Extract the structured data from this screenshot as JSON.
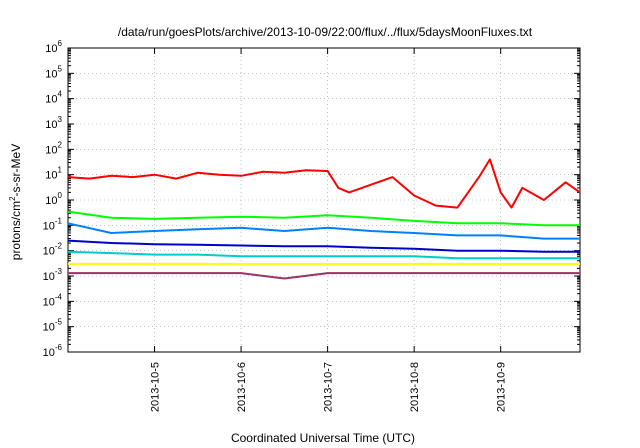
{
  "chart_data": {
    "type": "line",
    "title": "/data/run/goesPlots/archive/2013-10-09/22:00/flux/../flux/5daysMoonFluxes.txt",
    "xlabel": "Coordinated Universal Time (UTC)",
    "ylabel": {
      "prefix": "protons/cm",
      "sup": "2",
      "suffix": "-s-sr-MeV"
    },
    "x_range": [
      "2013-10-04 00:00",
      "2013-10-09 22:00"
    ],
    "x_ticks": [
      "2013-10-5",
      "2013-10-6",
      "2013-10-7",
      "2013-10-8",
      "2013-10-9"
    ],
    "y_scale": "log",
    "ylim": [
      1e-06,
      1000000.0
    ],
    "y_ticks": [
      {
        "base": "10",
        "exp": "-6"
      },
      {
        "base": "10",
        "exp": "-5"
      },
      {
        "base": "10",
        "exp": "-4"
      },
      {
        "base": "10",
        "exp": "-3"
      },
      {
        "base": "10",
        "exp": "-2"
      },
      {
        "base": "10",
        "exp": "-1"
      },
      {
        "base": "10",
        "exp": "0"
      },
      {
        "base": "10",
        "exp": "1"
      },
      {
        "base": "10",
        "exp": "2"
      },
      {
        "base": "10",
        "exp": "3"
      },
      {
        "base": "10",
        "exp": "4"
      },
      {
        "base": "10",
        "exp": "5"
      },
      {
        "base": "10",
        "exp": "6"
      }
    ],
    "grid": true,
    "series": [
      {
        "color": "#ff0000",
        "x": [
          "2013-10-04 00:00",
          "2013-10-04 06:00",
          "2013-10-04 12:00",
          "2013-10-04 18:00",
          "2013-10-05 00:00",
          "2013-10-05 06:00",
          "2013-10-05 12:00",
          "2013-10-05 18:00",
          "2013-10-06 00:00",
          "2013-10-06 06:00",
          "2013-10-06 12:00",
          "2013-10-06 18:00",
          "2013-10-07 00:00",
          "2013-10-07 03:00",
          "2013-10-07 06:00",
          "2013-10-07 12:00",
          "2013-10-07 18:00",
          "2013-10-08 00:00",
          "2013-10-08 06:00",
          "2013-10-08 12:00",
          "2013-10-08 18:00",
          "2013-10-08 21:00",
          "2013-10-09 00:00",
          "2013-10-09 03:00",
          "2013-10-09 06:00",
          "2013-10-09 12:00",
          "2013-10-09 18:00",
          "2013-10-09 22:00"
        ],
        "y": [
          8,
          7,
          9,
          8,
          10,
          7,
          12,
          10,
          9,
          13,
          12,
          15,
          14,
          3,
          2,
          4,
          8,
          1.5,
          0.6,
          0.5,
          8,
          40,
          2,
          0.5,
          3,
          1,
          5,
          2
        ]
      },
      {
        "color": "#00ff00",
        "x": [
          "2013-10-04 00:00",
          "2013-10-04 12:00",
          "2013-10-05 00:00",
          "2013-10-05 12:00",
          "2013-10-06 00:00",
          "2013-10-06 12:00",
          "2013-10-07 00:00",
          "2013-10-07 12:00",
          "2013-10-08 00:00",
          "2013-10-08 12:00",
          "2013-10-09 00:00",
          "2013-10-09 12:00",
          "2013-10-09 22:00"
        ],
        "y": [
          0.35,
          0.2,
          0.18,
          0.2,
          0.22,
          0.2,
          0.25,
          0.2,
          0.15,
          0.12,
          0.12,
          0.1,
          0.1
        ]
      },
      {
        "color": "#0080ff",
        "x": [
          "2013-10-04 00:00",
          "2013-10-04 12:00",
          "2013-10-05 00:00",
          "2013-10-05 12:00",
          "2013-10-06 00:00",
          "2013-10-06 12:00",
          "2013-10-07 00:00",
          "2013-10-07 12:00",
          "2013-10-08 00:00",
          "2013-10-08 12:00",
          "2013-10-09 00:00",
          "2013-10-09 12:00",
          "2013-10-09 22:00"
        ],
        "y": [
          0.12,
          0.05,
          0.06,
          0.07,
          0.08,
          0.06,
          0.08,
          0.06,
          0.05,
          0.04,
          0.04,
          0.03,
          0.03
        ]
      },
      {
        "color": "#0000cc",
        "x": [
          "2013-10-04 00:00",
          "2013-10-04 12:00",
          "2013-10-05 00:00",
          "2013-10-05 12:00",
          "2013-10-06 00:00",
          "2013-10-06 12:00",
          "2013-10-07 00:00",
          "2013-10-07 12:00",
          "2013-10-08 00:00",
          "2013-10-08 12:00",
          "2013-10-09 00:00",
          "2013-10-09 12:00",
          "2013-10-09 22:00"
        ],
        "y": [
          0.025,
          0.02,
          0.018,
          0.017,
          0.016,
          0.015,
          0.015,
          0.013,
          0.012,
          0.01,
          0.01,
          0.009,
          0.009
        ]
      },
      {
        "color": "#00cccc",
        "x": [
          "2013-10-04 00:00",
          "2013-10-04 12:00",
          "2013-10-05 00:00",
          "2013-10-05 12:00",
          "2013-10-06 00:00",
          "2013-10-06 12:00",
          "2013-10-07 00:00",
          "2013-10-07 12:00",
          "2013-10-08 00:00",
          "2013-10-08 12:00",
          "2013-10-09 00:00",
          "2013-10-09 12:00",
          "2013-10-09 22:00"
        ],
        "y": [
          0.009,
          0.008,
          0.007,
          0.007,
          0.006,
          0.006,
          0.006,
          0.006,
          0.006,
          0.005,
          0.005,
          0.005,
          0.005
        ]
      },
      {
        "color": "#ffff00",
        "x": [
          "2013-10-04 00:00",
          "2013-10-05 00:00",
          "2013-10-06 00:00",
          "2013-10-07 00:00",
          "2013-10-08 00:00",
          "2013-10-09 00:00",
          "2013-10-09 22:00"
        ],
        "y": [
          0.003,
          0.003,
          0.003,
          0.003,
          0.003,
          0.003,
          0.003
        ]
      },
      {
        "color": "#993366",
        "x": [
          "2013-10-04 00:00",
          "2013-10-05 00:00",
          "2013-10-06 00:00",
          "2013-10-06 12:00",
          "2013-10-07 00:00",
          "2013-10-08 00:00",
          "2013-10-09 00:00",
          "2013-10-09 22:00"
        ],
        "y": [
          0.0013,
          0.0013,
          0.0013,
          0.0008,
          0.0013,
          0.0013,
          0.0013,
          0.0013
        ]
      }
    ]
  }
}
